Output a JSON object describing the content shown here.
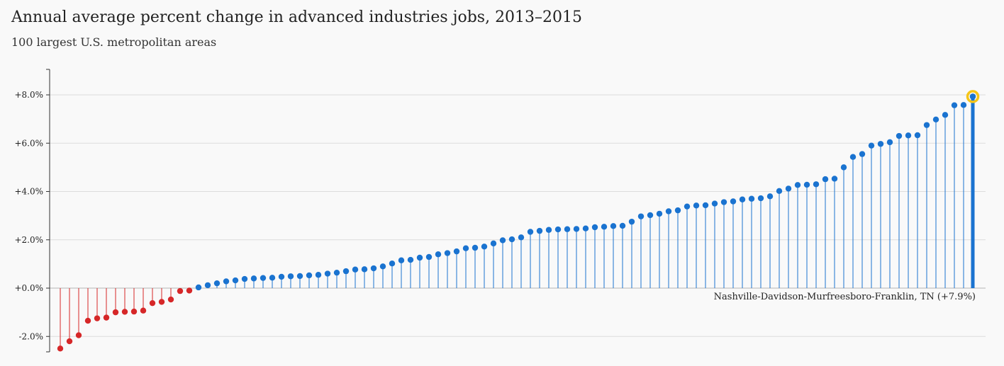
{
  "title": "Annual average percent change in advanced industries jobs, 2013–2015",
  "subtitle": "100 largest U.S. metropolitan areas",
  "chart_data": {
    "type": "lollipop",
    "ylim": [
      -2.7,
      9.0
    ],
    "yticks": [
      -2.0,
      0.0,
      2.0,
      4.0,
      6.0,
      8.0
    ],
    "ytick_labels": [
      "-2.0%",
      "+0.0%",
      "+2.0%",
      "+4.0%",
      "+6.0%",
      "+8.0%"
    ],
    "grid": true,
    "colors": {
      "negative": "#d62728",
      "positive": "#1a73d0",
      "highlight_ring": "#f5c518"
    },
    "values": [
      -2.5,
      -2.2,
      -1.95,
      -1.35,
      -1.25,
      -1.22,
      -1.0,
      -0.98,
      -0.97,
      -0.93,
      -0.62,
      -0.57,
      -0.47,
      -0.12,
      -0.1,
      0.03,
      0.12,
      0.2,
      0.28,
      0.32,
      0.38,
      0.4,
      0.42,
      0.43,
      0.47,
      0.49,
      0.5,
      0.53,
      0.55,
      0.6,
      0.64,
      0.7,
      0.77,
      0.78,
      0.82,
      0.9,
      1.02,
      1.15,
      1.17,
      1.26,
      1.29,
      1.4,
      1.45,
      1.52,
      1.65,
      1.67,
      1.72,
      1.85,
      1.98,
      2.02,
      2.1,
      2.33,
      2.37,
      2.41,
      2.43,
      2.44,
      2.45,
      2.47,
      2.52,
      2.54,
      2.57,
      2.58,
      2.75,
      2.97,
      3.02,
      3.08,
      3.18,
      3.22,
      3.38,
      3.42,
      3.43,
      3.5,
      3.56,
      3.59,
      3.67,
      3.7,
      3.72,
      3.8,
      4.02,
      4.12,
      4.27,
      4.28,
      4.3,
      4.51,
      4.53,
      5.0,
      5.43,
      5.55,
      5.9,
      5.97,
      6.04,
      6.3,
      6.32,
      6.33,
      6.75,
      6.98,
      7.17,
      7.57,
      7.58,
      7.93
    ],
    "highlight": {
      "index": 99,
      "label": "Nashville-Davidson-Murfreesboro-Franklin, TN (+7.9%)",
      "value": 7.9
    }
  }
}
